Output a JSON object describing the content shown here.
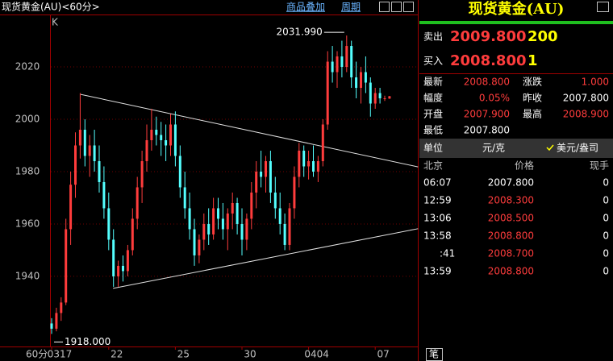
{
  "header": {
    "title": "现货黄金(AU)<60分>",
    "overlay": "商品叠加",
    "period": "周期"
  },
  "chart_data": {
    "type": "candlestick",
    "panel_label": "K",
    "x_unit": "60分",
    "up_color": "#ff3c3c",
    "down_color": "#54ffff",
    "candles": [
      [
        1922,
        1924,
        1918,
        1920
      ],
      [
        1920,
        1928,
        1919,
        1926
      ],
      [
        1926,
        1932,
        1923,
        1930
      ],
      [
        1930,
        1962,
        1929,
        1958
      ],
      [
        1958,
        1980,
        1952,
        1975
      ],
      [
        1975,
        1995,
        1970,
        1990
      ],
      [
        1990,
        2010,
        1985,
        1996
      ],
      [
        1996,
        2000,
        1982,
        1986
      ],
      [
        1986,
        1994,
        1978,
        1990
      ],
      [
        1990,
        1996,
        1980,
        1984
      ],
      [
        1984,
        1990,
        1972,
        1976
      ],
      [
        1976,
        1982,
        1962,
        1966
      ],
      [
        1966,
        1972,
        1950,
        1954
      ],
      [
        1954,
        1958,
        1936,
        1940
      ],
      [
        1940,
        1946,
        1936,
        1944
      ],
      [
        1944,
        1948,
        1938,
        1942
      ],
      [
        1942,
        1952,
        1940,
        1950
      ],
      [
        1950,
        1966,
        1948,
        1962
      ],
      [
        1962,
        1978,
        1958,
        1974
      ],
      [
        1974,
        1988,
        1968,
        1984
      ],
      [
        1984,
        1998,
        1980,
        1992
      ],
      [
        1992,
        2004,
        1988,
        1996
      ],
      [
        1996,
        2001,
        1990,
        1994
      ],
      [
        1994,
        1999,
        1986,
        1992
      ],
      [
        1992,
        1998,
        1984,
        1990
      ],
      [
        1990,
        2002,
        1986,
        1998
      ],
      [
        1998,
        2003,
        1982,
        1986
      ],
      [
        1986,
        1990,
        1970,
        1974
      ],
      [
        1974,
        1980,
        1962,
        1966
      ],
      [
        1966,
        1972,
        1954,
        1958
      ],
      [
        1958,
        1962,
        1944,
        1948
      ],
      [
        1948,
        1956,
        1945,
        1954
      ],
      [
        1954,
        1964,
        1950,
        1960
      ],
      [
        1960,
        1966,
        1952,
        1956
      ],
      [
        1956,
        1970,
        1954,
        1966
      ],
      [
        1966,
        1970,
        1958,
        1962
      ],
      [
        1962,
        1968,
        1954,
        1958
      ],
      [
        1958,
        1966,
        1950,
        1964
      ],
      [
        1964,
        1972,
        1958,
        1968
      ],
      [
        1968,
        1970,
        1956,
        1960
      ],
      [
        1960,
        1966,
        1948,
        1954
      ],
      [
        1954,
        1964,
        1950,
        1962
      ],
      [
        1962,
        1976,
        1958,
        1972
      ],
      [
        1972,
        1984,
        1966,
        1980
      ],
      [
        1980,
        1988,
        1974,
        1978
      ],
      [
        1978,
        1986,
        1972,
        1984
      ],
      [
        1984,
        1988,
        1968,
        1972
      ],
      [
        1972,
        1978,
        1962,
        1966
      ],
      [
        1966,
        1972,
        1956,
        1960
      ],
      [
        1960,
        1964,
        1950,
        1952
      ],
      [
        1952,
        1968,
        1950,
        1966
      ],
      [
        1966,
        1982,
        1962,
        1978
      ],
      [
        1978,
        1991,
        1974,
        1988
      ],
      [
        1988,
        1990,
        1978,
        1982
      ],
      [
        1982,
        1988,
        1977,
        1984
      ],
      [
        1984,
        1990,
        1978,
        1980
      ],
      [
        1980,
        1986,
        1976,
        1984
      ],
      [
        1984,
        2000,
        1982,
        1998
      ],
      [
        1998,
        2026,
        1996,
        2022
      ],
      [
        2022,
        2028,
        2014,
        2018
      ],
      [
        2018,
        2026,
        2012,
        2024
      ],
      [
        2024,
        2030,
        2016,
        2020
      ],
      [
        2020,
        2031.99,
        2018,
        2028
      ],
      [
        2028,
        2030,
        2012,
        2016
      ],
      [
        2016,
        2022,
        2008,
        2012
      ],
      [
        2012,
        2020,
        2006,
        2018
      ],
      [
        2018,
        2024,
        2010,
        2014
      ],
      [
        2014,
        2016,
        2001,
        2006
      ],
      [
        2006,
        2012,
        2004,
        2010
      ],
      [
        2010,
        2012,
        2006,
        2008
      ],
      [
        2008,
        2009,
        2007,
        2008
      ],
      [
        2007.9,
        2008.9,
        2007.8,
        2008.8
      ]
    ],
    "ylim": [
      1913.2,
      2039.4
    ],
    "yticks": [
      1940,
      1960,
      1980,
      2000,
      2020
    ],
    "grid": true,
    "xticks": [
      {
        "value": 0,
        "label": "0317"
      },
      {
        "value": 12,
        "label": "22"
      },
      {
        "value": 26,
        "label": "25"
      },
      {
        "value": 40,
        "label": "30"
      },
      {
        "value": 54,
        "label": "0404"
      },
      {
        "value": 68,
        "label": "07"
      }
    ],
    "annotations": [
      {
        "index": 62,
        "value": 2031.99,
        "label": "2031.990"
      },
      {
        "index": 0,
        "value": 1918,
        "label": "1918.000"
      }
    ],
    "trendlines": [
      {
        "x": [
          6.1,
          77
        ],
        "y": [
          2009.5,
          1981.8
        ]
      },
      {
        "x": [
          12.9,
          77
        ],
        "y": [
          1935.4,
          1958.2
        ]
      }
    ]
  },
  "quote": {
    "title": "现货黄金(AU)",
    "sell": {
      "label": "卖出",
      "price": "2009.800",
      "volume": "200"
    },
    "buy": {
      "label": "买入",
      "price": "2008.800",
      "volume": "1"
    },
    "stats": [
      [
        "最新",
        "2008.800",
        "涨跌",
        "1.000"
      ],
      [
        "幅度",
        "0.05%",
        "昨收",
        "2007.800"
      ],
      [
        "开盘",
        "2007.900",
        "最高",
        "2008.900"
      ],
      [
        "最低",
        "2007.800"
      ]
    ],
    "unit": {
      "label": "单位",
      "value": "元/克",
      "alt": "美元/盎司"
    },
    "ticks_header": [
      "北京",
      "价格",
      "现手"
    ],
    "ticks": [
      [
        "06:07",
        "2007.800",
        "0"
      ],
      [
        "12:59",
        "2008.300",
        "0"
      ],
      [
        "13:06",
        "2008.500",
        "0"
      ],
      [
        "13:58",
        "2008.800",
        "0"
      ],
      [
        ":41",
        "2008.700",
        "0"
      ],
      [
        "13:59",
        "2008.800",
        "0"
      ]
    ],
    "tab": "笔"
  }
}
